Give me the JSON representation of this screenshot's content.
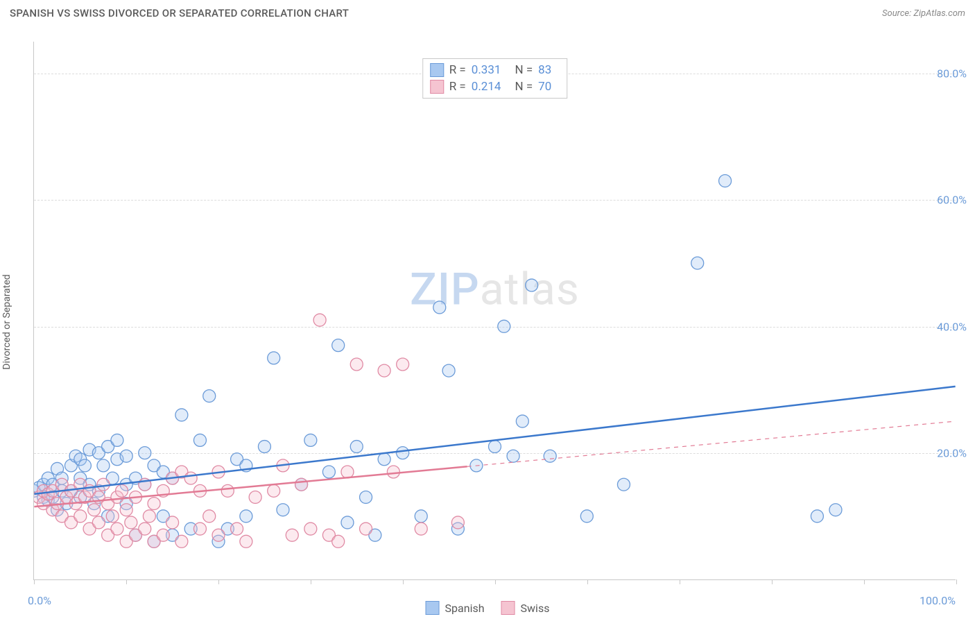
{
  "header": {
    "title": "SPANISH VS SWISS DIVORCED OR SEPARATED CORRELATION CHART",
    "source": "Source: ZipAtlas.com"
  },
  "watermark": {
    "part1": "ZIP",
    "part2": "atlas"
  },
  "chart": {
    "type": "scatter",
    "background_color": "#ffffff",
    "grid_color": "#dcdcdc",
    "axis_color": "#c8c8c8",
    "tick_label_color": "#6b9bd8",
    "text_color": "#5a5a5a",
    "ylabel": "Divorced or Separated",
    "xlim": [
      0,
      100
    ],
    "ylim": [
      0,
      85
    ],
    "xticks": [
      0,
      10,
      20,
      30,
      40,
      50,
      60,
      70,
      80,
      90,
      100
    ],
    "xtick_labels_shown": {
      "0": "0.0%",
      "100": "100.0%"
    },
    "yticks": [
      20,
      40,
      60,
      80
    ],
    "ytick_labels": {
      "20": "20.0%",
      "40": "40.0%",
      "60": "60.0%",
      "80": "80.0%"
    },
    "marker_radius": 9,
    "marker_stroke_width": 1.3,
    "marker_fill_opacity": 0.35,
    "trend_line_width": 2.5,
    "series": [
      {
        "name": "Spanish",
        "fill_color": "#a8c8f0",
        "stroke_color": "#6b9bd8",
        "trend_color": "#3b78cc",
        "R": "0.331",
        "N": "83",
        "trend": {
          "x1": 0,
          "y1": 13.5,
          "x2": 100,
          "y2": 30.5,
          "solid_until_x": 100
        },
        "points": [
          [
            0,
            14
          ],
          [
            0.5,
            14.5
          ],
          [
            1,
            13
          ],
          [
            1,
            15
          ],
          [
            1.5,
            12.5
          ],
          [
            1.5,
            16
          ],
          [
            2,
            15
          ],
          [
            2,
            13
          ],
          [
            2.5,
            17.5
          ],
          [
            2.5,
            11
          ],
          [
            3,
            16
          ],
          [
            3,
            14
          ],
          [
            3.5,
            12
          ],
          [
            4,
            18
          ],
          [
            4,
            14
          ],
          [
            4.5,
            19.5
          ],
          [
            5,
            19
          ],
          [
            5,
            16
          ],
          [
            5,
            13
          ],
          [
            5.5,
            18
          ],
          [
            6,
            20.5
          ],
          [
            6,
            15
          ],
          [
            6.5,
            12
          ],
          [
            7,
            20
          ],
          [
            7,
            14
          ],
          [
            7.5,
            18
          ],
          [
            8,
            21
          ],
          [
            8,
            10
          ],
          [
            8.5,
            16
          ],
          [
            9,
            19
          ],
          [
            9,
            22
          ],
          [
            10,
            15
          ],
          [
            10,
            12
          ],
          [
            10,
            19.5
          ],
          [
            11,
            16
          ],
          [
            11,
            7
          ],
          [
            12,
            20
          ],
          [
            12,
            15
          ],
          [
            13,
            6
          ],
          [
            13,
            18
          ],
          [
            14,
            17
          ],
          [
            14,
            10
          ],
          [
            15,
            16
          ],
          [
            15,
            7
          ],
          [
            16,
            26
          ],
          [
            17,
            8
          ],
          [
            18,
            22
          ],
          [
            19,
            29
          ],
          [
            20,
            6
          ],
          [
            21,
            8
          ],
          [
            22,
            19
          ],
          [
            23,
            10
          ],
          [
            23,
            18
          ],
          [
            25,
            21
          ],
          [
            26,
            35
          ],
          [
            27,
            11
          ],
          [
            29,
            15
          ],
          [
            30,
            22
          ],
          [
            32,
            17
          ],
          [
            33,
            37
          ],
          [
            34,
            9
          ],
          [
            35,
            21
          ],
          [
            36,
            13
          ],
          [
            37,
            7
          ],
          [
            38,
            19
          ],
          [
            40,
            20
          ],
          [
            42,
            10
          ],
          [
            44,
            43
          ],
          [
            45,
            33
          ],
          [
            46,
            8
          ],
          [
            48,
            18
          ],
          [
            50,
            21
          ],
          [
            51,
            40
          ],
          [
            52,
            19.5
          ],
          [
            53,
            25
          ],
          [
            54,
            46.5
          ],
          [
            56,
            19.5
          ],
          [
            60,
            10
          ],
          [
            64,
            15
          ],
          [
            72,
            50
          ],
          [
            75,
            63
          ],
          [
            85,
            10
          ],
          [
            87,
            11
          ]
        ]
      },
      {
        "name": "Swiss",
        "fill_color": "#f5c4d1",
        "stroke_color": "#e08aa4",
        "trend_color": "#e27a94",
        "R": "0.214",
        "N": "70",
        "trend": {
          "x1": 0,
          "y1": 11.5,
          "x2": 100,
          "y2": 25,
          "solid_until_x": 47
        },
        "points": [
          [
            0.5,
            13
          ],
          [
            1,
            12
          ],
          [
            1,
            14
          ],
          [
            1.5,
            13.5
          ],
          [
            2,
            11
          ],
          [
            2,
            14
          ],
          [
            2.5,
            12
          ],
          [
            3,
            15
          ],
          [
            3,
            10
          ],
          [
            3.5,
            13
          ],
          [
            4,
            14
          ],
          [
            4,
            9
          ],
          [
            4.5,
            12
          ],
          [
            5,
            15
          ],
          [
            5,
            10
          ],
          [
            5.5,
            13
          ],
          [
            6,
            8
          ],
          [
            6,
            14
          ],
          [
            6.5,
            11
          ],
          [
            7,
            9
          ],
          [
            7,
            13
          ],
          [
            7.5,
            15
          ],
          [
            8,
            7
          ],
          [
            8,
            12
          ],
          [
            8.5,
            10
          ],
          [
            9,
            8
          ],
          [
            9,
            13
          ],
          [
            9.5,
            14
          ],
          [
            10,
            6
          ],
          [
            10,
            11
          ],
          [
            10.5,
            9
          ],
          [
            11,
            7
          ],
          [
            11,
            13
          ],
          [
            12,
            8
          ],
          [
            12,
            15
          ],
          [
            12.5,
            10
          ],
          [
            13,
            6
          ],
          [
            13,
            12
          ],
          [
            14,
            7
          ],
          [
            14,
            14
          ],
          [
            15,
            16
          ],
          [
            15,
            9
          ],
          [
            16,
            17
          ],
          [
            16,
            6
          ],
          [
            17,
            16
          ],
          [
            18,
            8
          ],
          [
            18,
            14
          ],
          [
            19,
            10
          ],
          [
            20,
            17
          ],
          [
            20,
            7
          ],
          [
            21,
            14
          ],
          [
            22,
            8
          ],
          [
            23,
            6
          ],
          [
            24,
            13
          ],
          [
            26,
            14
          ],
          [
            27,
            18
          ],
          [
            28,
            7
          ],
          [
            29,
            15
          ],
          [
            30,
            8
          ],
          [
            31,
            41
          ],
          [
            32,
            7
          ],
          [
            33,
            6
          ],
          [
            34,
            17
          ],
          [
            35,
            34
          ],
          [
            36,
            8
          ],
          [
            38,
            33
          ],
          [
            39,
            17
          ],
          [
            40,
            34
          ],
          [
            42,
            8
          ],
          [
            46,
            9
          ]
        ]
      }
    ]
  },
  "legend_top": {
    "rows": [
      {
        "r_label": "R =",
        "r_val": "0.331",
        "n_label": "N =",
        "n_val": "83"
      },
      {
        "r_label": "R =",
        "r_val": "0.214",
        "n_label": "N =",
        "n_val": "70"
      }
    ]
  },
  "legend_bottom": {
    "items": [
      "Spanish",
      "Swiss"
    ]
  }
}
